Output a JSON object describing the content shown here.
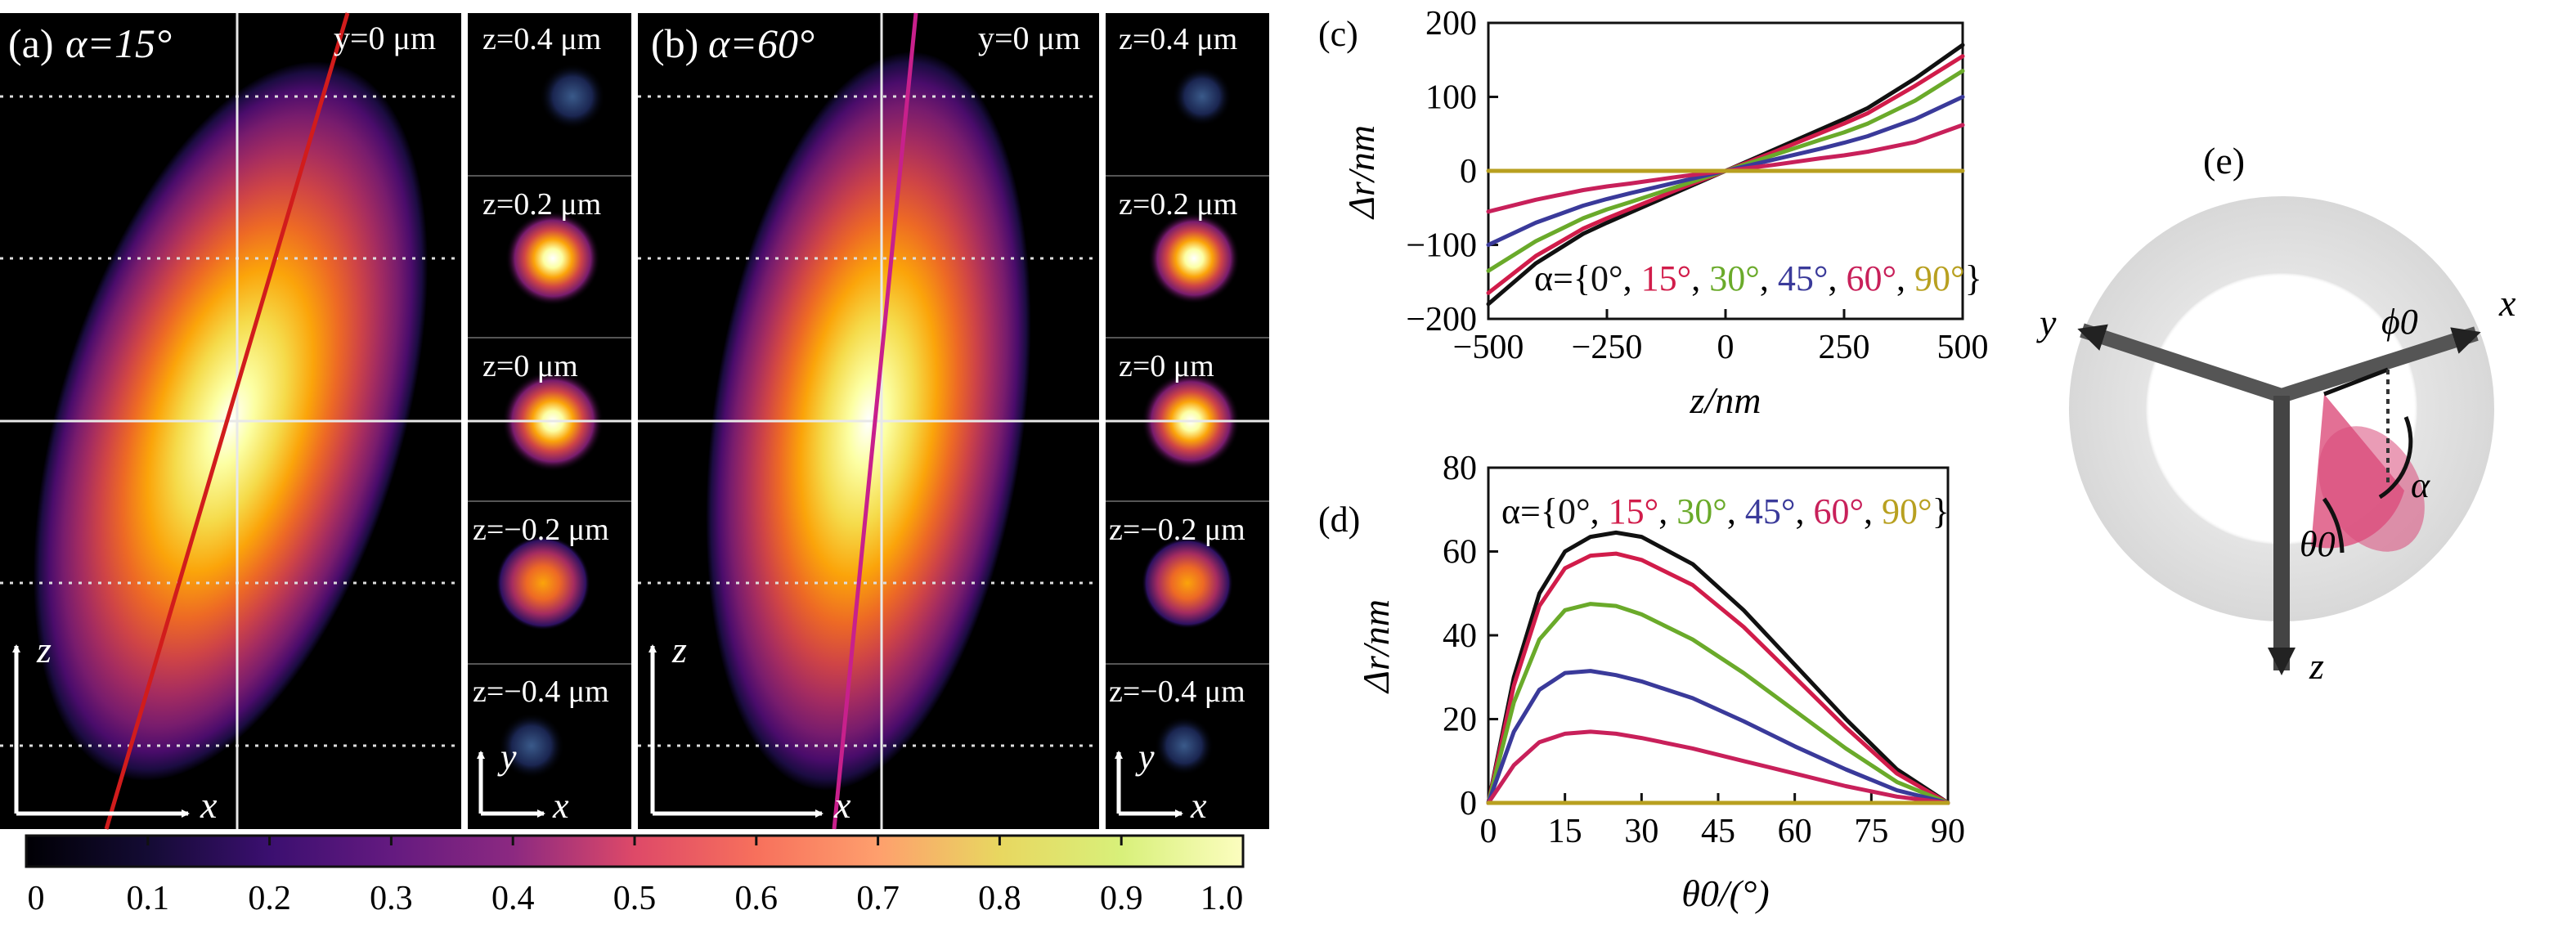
{
  "colorbar": {
    "ticks": [
      "0",
      "0.1",
      "0.2",
      "0.3",
      "0.4",
      "0.5",
      "0.6",
      "0.7",
      "0.8",
      "0.9",
      "1.0"
    ]
  },
  "panel_a": {
    "label": "(a)",
    "alpha_text": "α=15°",
    "xz_label": "y=0 μm",
    "slices": [
      "z=0.4 μm",
      "z=0.2 μm",
      "z=0 μm",
      "z=−0.2 μm",
      "z=−0.4 μm"
    ],
    "axis_z": "z",
    "axis_x": "x",
    "axis_y": "y",
    "axis_x2": "x",
    "line_color": "#d11c1c"
  },
  "panel_b": {
    "label": "(b)",
    "alpha_text": "α=60°",
    "xz_label": "y=0 μm",
    "slices": [
      "z=0.4 μm",
      "z=0.2 μm",
      "z=0 μm",
      "z=−0.2 μm",
      "z=−0.4 μm"
    ],
    "axis_z": "z",
    "axis_x": "x",
    "axis_y": "y",
    "axis_x2": "x",
    "line_color": "#c8208c"
  },
  "panel_c": {
    "label": "(c)",
    "ylabel": "Δr/nm",
    "xlabel": "z/nm",
    "legend_prefix": "α={",
    "legend_items": [
      "0°",
      "15°",
      "30°",
      "45°",
      "60°",
      "90°"
    ],
    "legend_suffix": "}",
    "xticks": [
      "−500",
      "−250",
      "0",
      "250",
      "500"
    ],
    "yticks": [
      "200",
      "100",
      "0",
      "−100",
      "−200"
    ]
  },
  "panel_d": {
    "label": "(d)",
    "ylabel": "Δr/nm",
    "xlabel": "θ0/(°)",
    "legend_prefix": "α={",
    "legend_items": [
      "0°",
      "15°",
      "30°",
      "45°",
      "60°",
      "90°"
    ],
    "legend_suffix": "}",
    "xticks": [
      "0",
      "15",
      "30",
      "45",
      "60",
      "75",
      "90"
    ],
    "yticks": [
      "80",
      "60",
      "40",
      "20",
      "0"
    ]
  },
  "panel_e": {
    "label": "(e)",
    "axis_x": "x",
    "axis_y": "y",
    "axis_z": "z",
    "phi_label": "ϕ0",
    "theta_label": "θ0",
    "alpha_label": "α",
    "cone_color": "#e0608a"
  },
  "series_colors": [
    "#111111",
    "#d11c4a",
    "#6aaa2a",
    "#3a3a9a",
    "#c8205a",
    "#b8a020"
  ],
  "chart_data": [
    {
      "type": "line",
      "title": "(c)",
      "xlabel": "z/nm",
      "ylabel": "Δr/nm",
      "xlim": [
        -500,
        500
      ],
      "ylim": [
        -200,
        200
      ],
      "x": [
        -500,
        -400,
        -300,
        -250,
        -200,
        -100,
        0,
        100,
        200,
        250,
        300,
        400,
        500
      ],
      "series": [
        {
          "name": "0°",
          "values": [
            -180,
            -125,
            -85,
            -70,
            -56,
            -28,
            0,
            28,
            56,
            70,
            85,
            125,
            170
          ]
        },
        {
          "name": "15°",
          "values": [
            -165,
            -115,
            -78,
            -64,
            -51,
            -25,
            0,
            25,
            51,
            64,
            78,
            115,
            155
          ]
        },
        {
          "name": "30°",
          "values": [
            -135,
            -95,
            -64,
            -52,
            -42,
            -21,
            0,
            21,
            42,
            52,
            64,
            95,
            135
          ]
        },
        {
          "name": "45°",
          "values": [
            -100,
            -70,
            -47,
            -38,
            -30,
            -15,
            0,
            15,
            30,
            38,
            47,
            70,
            100
          ]
        },
        {
          "name": "60°",
          "values": [
            -55,
            -39,
            -26,
            -21,
            -17,
            -8,
            0,
            8,
            17,
            21,
            26,
            39,
            62
          ]
        },
        {
          "name": "90°",
          "values": [
            0,
            0,
            0,
            0,
            0,
            0,
            0,
            0,
            0,
            0,
            0,
            0,
            0
          ]
        }
      ],
      "grid": false,
      "legend_position": "bottom"
    },
    {
      "type": "line",
      "title": "(d)",
      "xlabel": "θ0/(°)",
      "ylabel": "Δr/nm",
      "xlim": [
        0,
        90
      ],
      "ylim": [
        0,
        80
      ],
      "x": [
        0,
        5,
        10,
        15,
        20,
        25,
        30,
        40,
        50,
        60,
        70,
        80,
        90
      ],
      "series": [
        {
          "name": "0°",
          "values": [
            0,
            30,
            50,
            60,
            63.5,
            64.5,
            63.5,
            57,
            46,
            33,
            20,
            8,
            0
          ]
        },
        {
          "name": "15°",
          "values": [
            0,
            28,
            47,
            56,
            59,
            59.5,
            58,
            52,
            42,
            30,
            18,
            7,
            0
          ]
        },
        {
          "name": "30°",
          "values": [
            0,
            24,
            39,
            46,
            47.5,
            47,
            45,
            39,
            31,
            22,
            13,
            5,
            0
          ]
        },
        {
          "name": "45°",
          "values": [
            0,
            17,
            27,
            31,
            31.5,
            30.5,
            29,
            25,
            19.5,
            13.5,
            8,
            3,
            0
          ]
        },
        {
          "name": "60°",
          "values": [
            0,
            9,
            14.5,
            16.5,
            17,
            16.5,
            15.5,
            13,
            10,
            7,
            4,
            1.5,
            0
          ]
        },
        {
          "name": "90°",
          "values": [
            0,
            0,
            0,
            0,
            0,
            0,
            0,
            0,
            0,
            0,
            0,
            0,
            0
          ]
        }
      ],
      "grid": false,
      "legend_position": "top"
    }
  ]
}
